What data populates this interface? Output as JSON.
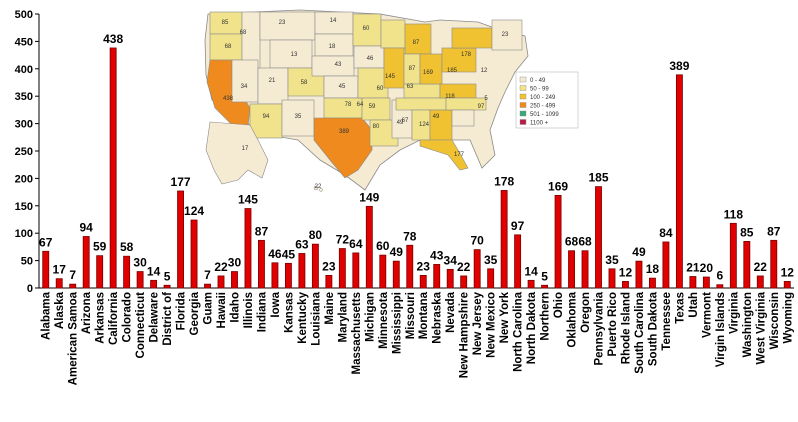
{
  "chart_data": {
    "type": "bar",
    "title": "",
    "xlabel": "",
    "ylabel": "",
    "ylim": [
      0,
      500
    ],
    "yticks": [
      0,
      50,
      100,
      150,
      200,
      250,
      300,
      350,
      400,
      450,
      500
    ],
    "grid": false,
    "bar_color": "#e00000",
    "categories": [
      "Alabama",
      "Alaska",
      "American Samoa",
      "Arizona",
      "Arkansas",
      "California",
      "Colorado",
      "Connecticut",
      "Delaware",
      "District of",
      "Florida",
      "Georgia",
      "Guam",
      "Hawaii",
      "Idaho",
      "Illinois",
      "Indiana",
      "Iowa",
      "Kansas",
      "Kentucky",
      "Louisiana",
      "Maine",
      "Maryland",
      "Massachusetts",
      "Michigan",
      "Minnesota",
      "Mississippi",
      "Missouri",
      "Montana",
      "Nebraska",
      "Nevada",
      "New Hampshire",
      "New Jersey",
      "New Mexico",
      "New York",
      "North Carolina",
      "North Dakota",
      "Northern",
      "Ohio",
      "Oklahoma",
      "Oregon",
      "Pennsylvania",
      "Puerto Rico",
      "Rhode Island",
      "South Carolina",
      "South Dakota",
      "Tennessee",
      "Texas",
      "Utah",
      "Vermont",
      "Virgin Islands",
      "Virginia",
      "Washington",
      "West Virginia",
      "Wisconsin",
      "Wyoming"
    ],
    "values": [
      67,
      17,
      7,
      94,
      59,
      438,
      58,
      30,
      14,
      5,
      177,
      124,
      7,
      22,
      30,
      145,
      87,
      46,
      45,
      63,
      80,
      23,
      72,
      64,
      149,
      60,
      49,
      78,
      23,
      43,
      34,
      22,
      70,
      35,
      178,
      97,
      14,
      5,
      169,
      68,
      68,
      185,
      35,
      12,
      49,
      18,
      84,
      389,
      21,
      20,
      6,
      118,
      85,
      22,
      87,
      12
    ],
    "data_labels": [
      "67",
      "17",
      "7",
      "94",
      "59",
      "438",
      "58",
      "30",
      "14",
      "5",
      "177",
      "124",
      "7",
      "22",
      "30",
      "145",
      "87",
      "46",
      "45",
      "63",
      "80",
      "23",
      "72",
      "64",
      "149",
      "60",
      "49",
      "78",
      "23",
      "43",
      "34",
      "22",
      "70",
      "35",
      "178",
      "97",
      "14",
      "5",
      "169",
      "68",
      "68",
      "185",
      "35",
      "12",
      "49",
      "18",
      "84",
      "389",
      "21",
      "20",
      "6",
      "118",
      "85",
      "22",
      "87",
      "12"
    ]
  },
  "inset_map": {
    "legend": [
      {
        "label": "0 - 49",
        "color": "#f5ead2"
      },
      {
        "label": "50 - 99",
        "color": "#f1e38c"
      },
      {
        "label": "100 - 249",
        "color": "#f0c232"
      },
      {
        "label": "250 - 499",
        "color": "#ee8a1e"
      },
      {
        "label": "501 - 1099",
        "color": "#3aa67b"
      },
      {
        "label": "1100 +",
        "color": "#b51c47"
      }
    ],
    "state_values": [
      "85",
      "23",
      "14",
      "60",
      "87",
      "23",
      "68",
      "13",
      "18",
      "43",
      "46",
      "34",
      "21",
      "58",
      "45",
      "145",
      "87",
      "63",
      "169",
      "185",
      "178",
      "97",
      "438",
      "94",
      "35",
      "389",
      "80",
      "49",
      "67",
      "124",
      "17",
      "22",
      "68",
      "59",
      "64",
      "78",
      "60",
      "12",
      "5",
      "118",
      "49",
      "177"
    ]
  }
}
